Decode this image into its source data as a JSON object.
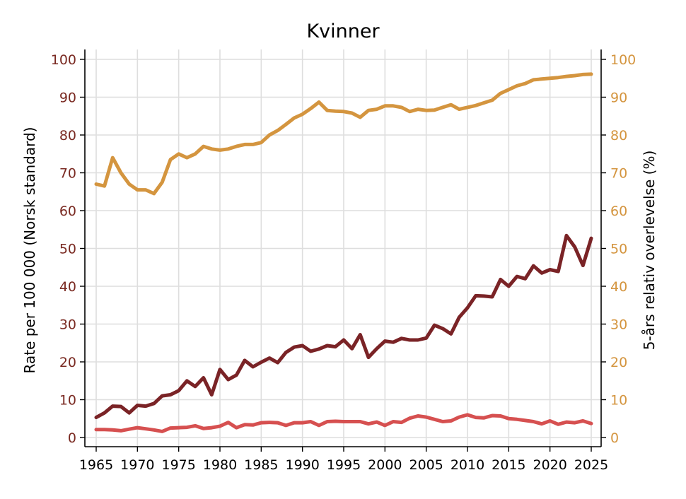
{
  "chart_data": {
    "type": "line",
    "title": "Kvinner",
    "ylabel": "Rate per 100 000 (Norsk standard)",
    "ylabel_right": "5-års relativ overlevelse (%)",
    "xlim": [
      1965,
      2025
    ],
    "ylim": [
      0,
      100
    ],
    "ylim_right": [
      0,
      100
    ],
    "x_ticks": [
      "1965",
      "1970",
      "1975",
      "1980",
      "1985",
      "1990",
      "1995",
      "2000",
      "2005",
      "2010",
      "2015",
      "2020",
      "2025"
    ],
    "y_ticks": [
      "0",
      "10",
      "20",
      "30",
      "40",
      "50",
      "60",
      "70",
      "80",
      "90",
      "100"
    ],
    "y_ticks_right": [
      "0",
      "10",
      "20",
      "30",
      "40",
      "50",
      "60",
      "70",
      "80",
      "90",
      "100"
    ],
    "grid": true,
    "x": [
      1965,
      1966,
      1967,
      1968,
      1969,
      1970,
      1971,
      1972,
      1973,
      1974,
      1975,
      1976,
      1977,
      1978,
      1979,
      1980,
      1981,
      1982,
      1983,
      1984,
      1985,
      1986,
      1987,
      1988,
      1989,
      1990,
      1991,
      1992,
      1993,
      1994,
      1995,
      1996,
      1997,
      1998,
      1999,
      2000,
      2001,
      2002,
      2003,
      2004,
      2005,
      2006,
      2007,
      2008,
      2009,
      2010,
      2011,
      2012,
      2013,
      2014,
      2015,
      2016,
      2017,
      2018,
      2019,
      2020,
      2021,
      2022,
      2023,
      2024,
      2025
    ],
    "series": [
      {
        "axis": "right",
        "color": "#d4953f",
        "values": [
          67,
          66.5,
          74,
          70,
          67,
          65.5,
          65.5,
          64.5,
          67.5,
          73.5,
          75,
          74,
          75,
          77,
          76.3,
          76,
          76.3,
          77,
          77.5,
          77.5,
          78,
          80,
          81.2,
          82.8,
          84.5,
          85.5,
          87,
          88.7,
          86.5,
          86.3,
          86.2,
          85.8,
          84.7,
          86.5,
          86.8,
          87.7,
          87.7,
          87.3,
          86.2,
          86.8,
          86.5,
          86.6,
          87.3,
          88,
          86.8,
          87.3,
          87.8,
          88.5,
          89.2,
          91,
          92,
          93,
          93.6,
          94.6,
          94.8,
          95,
          95.2,
          95.5,
          95.7,
          96,
          96.1
        ]
      },
      {
        "axis": "left",
        "color": "#7a2326",
        "values": [
          5.3,
          6.5,
          8.3,
          8.2,
          6.5,
          8.5,
          8.3,
          9,
          11,
          11.3,
          12.4,
          15,
          13.5,
          15.8,
          11.3,
          18,
          15.3,
          16.5,
          20.4,
          18.7,
          19.9,
          21,
          19.8,
          22.5,
          23.9,
          24.3,
          22.8,
          23.4,
          24.3,
          24,
          25.8,
          23.5,
          27.2,
          21.2,
          23.5,
          25.5,
          25.2,
          26.2,
          25.8,
          25.8,
          26.3,
          29.7,
          28.8,
          27.4,
          31.8,
          34.3,
          37.5,
          37.4,
          37.2,
          41.8,
          40,
          42.6,
          42,
          45.4,
          43.5,
          44.4,
          43.9,
          53.4,
          50.4,
          45.5,
          52.7
        ]
      },
      {
        "axis": "left",
        "color": "#d65050",
        "values": [
          2.1,
          2.1,
          2,
          1.8,
          2.2,
          2.6,
          2.3,
          2,
          1.6,
          2.5,
          2.6,
          2.7,
          3.1,
          2.4,
          2.6,
          3,
          4,
          2.6,
          3.4,
          3.3,
          3.9,
          4,
          3.9,
          3.2,
          3.9,
          3.9,
          4.2,
          3.2,
          4.2,
          4.3,
          4.2,
          4.2,
          4.2,
          3.6,
          4.1,
          3.2,
          4.2,
          4,
          5.1,
          5.7,
          5.4,
          4.8,
          4.2,
          4.4,
          5.4,
          6,
          5.3,
          5.2,
          5.8,
          5.7,
          5,
          4.8,
          4.5,
          4.2,
          3.6,
          4.4,
          3.5,
          4.1,
          3.9,
          4.4,
          3.7
        ]
      }
    ]
  }
}
